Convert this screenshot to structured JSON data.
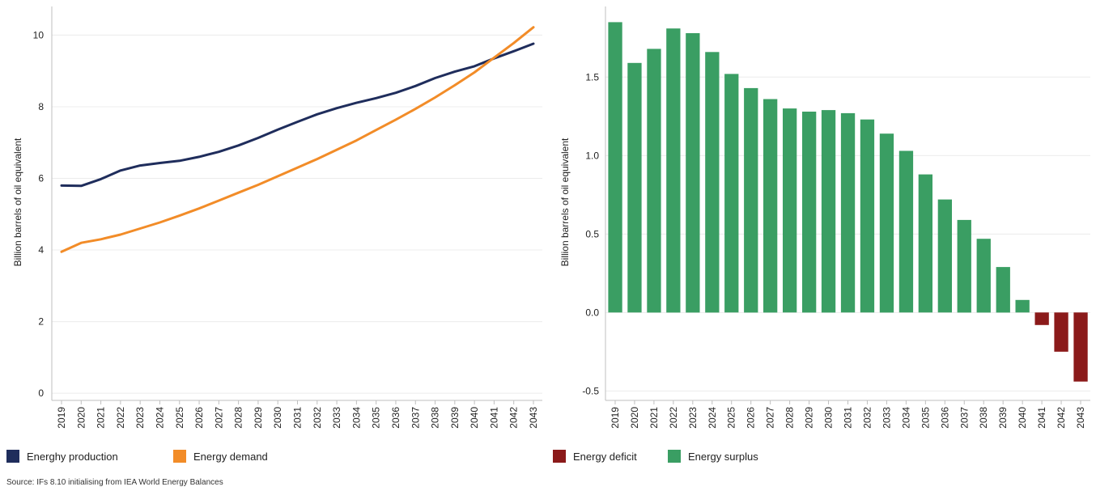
{
  "chart_data": [
    {
      "type": "line",
      "x": [
        "2019",
        "2020",
        "2021",
        "2022",
        "2023",
        "2024",
        "2025",
        "2026",
        "2027",
        "2028",
        "2029",
        "2030",
        "2031",
        "2032",
        "2033",
        "2034",
        "2035",
        "2036",
        "2037",
        "2038",
        "2039",
        "2040",
        "2041",
        "2042",
        "2043"
      ],
      "series": [
        {
          "name": "Energhy production",
          "color": "#1f2d5c",
          "values": [
            5.8,
            5.79,
            5.98,
            6.22,
            6.36,
            6.43,
            6.49,
            6.6,
            6.74,
            6.92,
            7.13,
            7.36,
            7.58,
            7.79,
            7.96,
            8.11,
            8.24,
            8.39,
            8.58,
            8.8,
            8.98,
            9.13,
            9.35,
            9.55,
            9.76
          ]
        },
        {
          "name": "Energy demand",
          "color": "#f28c28",
          "values": [
            3.95,
            4.2,
            4.3,
            4.43,
            4.6,
            4.77,
            4.96,
            5.16,
            5.38,
            5.6,
            5.82,
            6.06,
            6.3,
            6.54,
            6.8,
            7.06,
            7.35,
            7.64,
            7.94,
            8.26,
            8.6,
            8.96,
            9.37,
            9.78,
            10.22
          ]
        }
      ],
      "ylabel": "Billion barrels of oil equivalent",
      "yticks": [
        0,
        2,
        4,
        6,
        8,
        10
      ],
      "ylim": [
        -0.2,
        10.8
      ],
      "grid": true,
      "legend": "bottom"
    },
    {
      "type": "bar",
      "categories": [
        "2019",
        "2020",
        "2021",
        "2022",
        "2023",
        "2024",
        "2025",
        "2026",
        "2027",
        "2028",
        "2029",
        "2030",
        "2031",
        "2032",
        "2033",
        "2034",
        "2035",
        "2036",
        "2037",
        "2038",
        "2039",
        "2040",
        "2041",
        "2042",
        "2043"
      ],
      "values": [
        1.85,
        1.59,
        1.68,
        1.81,
        1.78,
        1.66,
        1.52,
        1.43,
        1.36,
        1.3,
        1.28,
        1.29,
        1.27,
        1.23,
        1.14,
        1.03,
        0.88,
        0.72,
        0.59,
        0.47,
        0.29,
        0.08,
        -0.08,
        -0.25,
        -0.44
      ],
      "series": [
        {
          "name": "Energy deficit",
          "color": "#8b1a1a"
        },
        {
          "name": "Energy surplus",
          "color": "#3a9e63"
        }
      ],
      "ylabel": "Billion barrels of oil equivalent",
      "yticks": [
        "-0.5",
        "0.0",
        "0.5",
        "1.0",
        "1.5"
      ],
      "ylim": [
        -0.56,
        1.95
      ],
      "grid": true,
      "legend": "bottom"
    }
  ],
  "source": "Source: IFs 8.10 initialising from IEA World Energy Balances"
}
